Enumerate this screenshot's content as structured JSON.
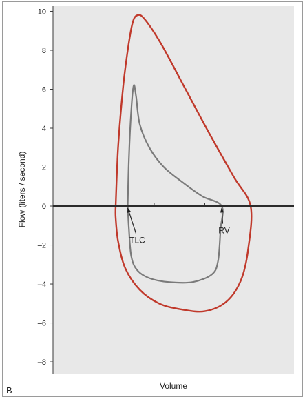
{
  "chart_data": {
    "type": "line",
    "panel_label": "B",
    "xlabel": "Volume",
    "ylabel": "Flow (liters / second)",
    "ylim": [
      -8.6,
      10.3
    ],
    "xlim": [
      0,
      100
    ],
    "yticks": [
      10,
      8,
      6,
      4,
      2,
      0,
      -2,
      -4,
      -6,
      -8
    ],
    "ytick_labels": [
      "10",
      "8",
      "6",
      "4",
      "2",
      "0",
      "–2",
      "–4",
      "–6",
      "–8"
    ],
    "xticks_minor": [
      42,
      63
    ],
    "grid": false,
    "series": [
      {
        "color": "#c0392b",
        "closed": true,
        "points": [
          [
            26,
            0
          ],
          [
            27,
            3
          ],
          [
            29,
            6
          ],
          [
            31,
            8
          ],
          [
            33,
            9.4
          ],
          [
            35,
            9.8
          ],
          [
            38,
            9.6
          ],
          [
            45,
            8.3
          ],
          [
            55,
            6.0
          ],
          [
            65,
            3.7
          ],
          [
            75,
            1.5
          ],
          [
            82,
            0
          ],
          [
            81,
            -2.2
          ],
          [
            78,
            -3.8
          ],
          [
            72,
            -4.9
          ],
          [
            63,
            -5.4
          ],
          [
            53,
            -5.3
          ],
          [
            44,
            -5.0
          ],
          [
            36,
            -4.3
          ],
          [
            30,
            -3.2
          ],
          [
            27,
            -1.8
          ],
          [
            26,
            -0.6
          ],
          [
            26,
            0
          ]
        ]
      },
      {
        "color": "#7a7a7a",
        "closed": true,
        "points": [
          [
            31,
            0
          ],
          [
            31.5,
            2.5
          ],
          [
            32.5,
            5.0
          ],
          [
            33.5,
            6.2
          ],
          [
            34.5,
            5.6
          ],
          [
            36,
            4.2
          ],
          [
            40,
            3.0
          ],
          [
            46,
            2.0
          ],
          [
            54,
            1.2
          ],
          [
            62,
            0.5
          ],
          [
            70,
            0
          ],
          [
            69.5,
            -1.2
          ],
          [
            68.5,
            -2.8
          ],
          [
            66,
            -3.5
          ],
          [
            58,
            -3.9
          ],
          [
            48,
            -3.9
          ],
          [
            40,
            -3.7
          ],
          [
            35,
            -3.3
          ],
          [
            32.5,
            -2.6
          ],
          [
            31.5,
            -1.2
          ],
          [
            31,
            0
          ]
        ]
      }
    ],
    "annotations": [
      {
        "text": "TLC",
        "x": 35,
        "y": -1.9,
        "arrow_to": [
          31,
          -0.1
        ]
      },
      {
        "text": "RV",
        "x": 71,
        "y": -1.4,
        "arrow_to": [
          70,
          -0.1
        ]
      }
    ]
  }
}
